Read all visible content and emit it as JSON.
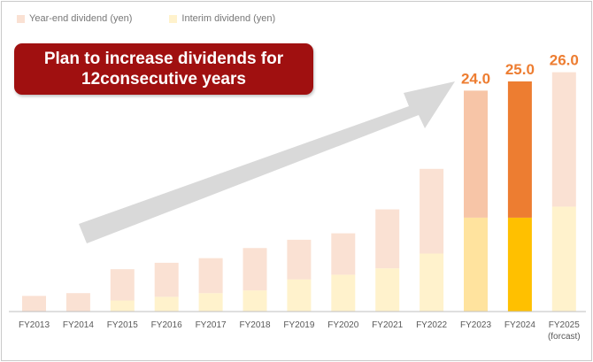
{
  "legend": {
    "year_end_label": "Year-end dividend (yen)",
    "interim_label": "Interim dividend (yen)"
  },
  "banner": {
    "line1": "Plan to increase dividends for",
    "line2": "12consecutive years"
  },
  "colors": {
    "year_end": "#fae1d3",
    "interim": "#fff2cc",
    "year_end_fy2023": "#f7c5a7",
    "interim_fy2023": "#ffe39e",
    "year_end_fy2024": "#ed7d31",
    "interim_fy2024": "#ffc000",
    "value_label": "#ed7d31",
    "arrow": "#d9d9d9",
    "banner": "#a01010"
  },
  "chart_data": {
    "type": "bar",
    "stacked": true,
    "categories": [
      "FY2013",
      "FY2014",
      "FY2015",
      "FY2016",
      "FY2017",
      "FY2018",
      "FY2019",
      "FY2020",
      "FY2021",
      "FY2022",
      "FY2023",
      "FY2024",
      "FY2025"
    ],
    "category_notes": [
      "",
      "",
      "",
      "",
      "",
      "",
      "",
      "",
      "",
      "",
      "",
      "",
      "(forcast)"
    ],
    "series": [
      {
        "name": "Interim dividend (yen)",
        "values": [
          0,
          0,
          1.2,
          1.6,
          2.0,
          2.3,
          3.5,
          4.0,
          4.7,
          6.3,
          10.2,
          10.2,
          11.4
        ]
      },
      {
        "name": "Year-end dividend (yen)",
        "values": [
          1.7,
          2.0,
          3.4,
          3.7,
          3.8,
          4.6,
          4.3,
          4.5,
          6.4,
          9.2,
          13.8,
          14.8,
          14.6
        ]
      }
    ],
    "totals_labeled": [
      null,
      null,
      null,
      null,
      null,
      null,
      null,
      null,
      null,
      null,
      "24.0",
      "25.0",
      "26.0"
    ],
    "ylim": [
      0,
      30
    ],
    "grid": false,
    "legend_position": "top-left"
  }
}
